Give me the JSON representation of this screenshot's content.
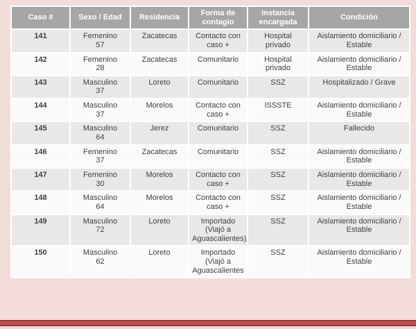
{
  "slide": {
    "background_color": "#f2dddb",
    "accent_bar_color": "#c0504d",
    "accent_bar_edge_color": "#953734",
    "header_bg_color": "#a6a6a6",
    "row_alt_bg_color": "#eae8e7",
    "row_bg_color": "#fbfafa"
  },
  "table": {
    "headers": [
      "Caso #",
      "Sexo / Edad",
      "Residencia",
      "Forma de contagio",
      "Instancia encargada",
      "Condición"
    ],
    "rows": [
      {
        "caso": "141",
        "sexo": "Femenino",
        "edad": "57",
        "residencia": "Zacatecas",
        "contagio": "Contacto con caso +",
        "instancia": "Hospital privado",
        "condicion": "Aislamiento domiciliario / Estable"
      },
      {
        "caso": "142",
        "sexo": "Femenino",
        "edad": "28",
        "residencia": "Zacatecas",
        "contagio": "Comunitario",
        "instancia": "Hospital privado",
        "condicion": "Aislamiento domiciliario / Estable"
      },
      {
        "caso": "143",
        "sexo": "Masculino",
        "edad": "37",
        "residencia": "Loreto",
        "contagio": "Comunitario",
        "instancia": "SSZ",
        "condicion": "Hospitalizado / Grave"
      },
      {
        "caso": "144",
        "sexo": "Masculino",
        "edad": "37",
        "residencia": "Morelos",
        "contagio": "Contacto con caso +",
        "instancia": "ISSSTE",
        "condicion": "Aislamiento domiciliario / Estable"
      },
      {
        "caso": "145",
        "sexo": "Masculino",
        "edad": "64",
        "residencia": "Jerez",
        "contagio": "Comunitario",
        "instancia": "SSZ",
        "condicion": "Fallecido"
      },
      {
        "caso": "146",
        "sexo": "Femenino",
        "edad": "37",
        "residencia": "Zacatecas",
        "contagio": "Comunitario",
        "instancia": "SSZ",
        "condicion": "Aislamiento domiciliario / Estable"
      },
      {
        "caso": "147",
        "sexo": "Femenino",
        "edad": "30",
        "residencia": "Morelos",
        "contagio": "Contacto con caso +",
        "instancia": "SSZ",
        "condicion": "Aislamiento domiciliario / Estable"
      },
      {
        "caso": "148",
        "sexo": "Masculino",
        "edad": "64",
        "residencia": "Morelos",
        "contagio": "Contacto con caso +",
        "instancia": "SSZ",
        "condicion": "Aislamiento domiciliario / Estable"
      },
      {
        "caso": "149",
        "sexo": "Masculino",
        "edad": "72",
        "residencia": "Loreto",
        "contagio": "Importado (Viajó a Aguascalientes)",
        "instancia": "SSZ",
        "condicion": "Aislamiento domiciliario / Estable"
      },
      {
        "caso": "150",
        "sexo": "Masculino",
        "edad": "62",
        "residencia": "Loreto",
        "contagio": "Importado (Viajó a Aguascalientes",
        "instancia": "SSZ",
        "condicion": "Aislamiento domiciliario / Estable"
      }
    ]
  }
}
